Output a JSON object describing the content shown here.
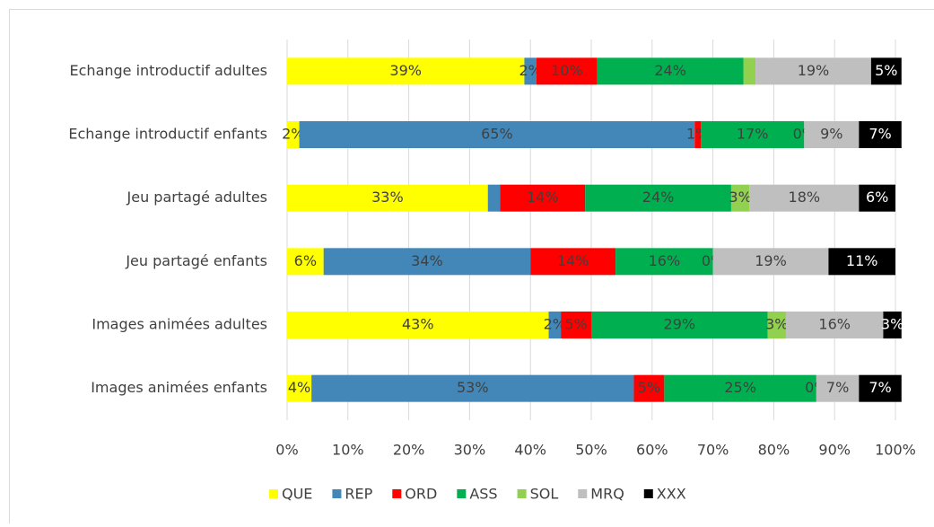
{
  "chart_data": {
    "type": "stacked_barh",
    "categories": [
      "Echange introductif adultes",
      "Echange introductif enfants",
      "Jeu partagé adultes",
      "Jeu partagé enfants",
      "Images animées adultes",
      "Images animées enfants"
    ],
    "series": [
      {
        "name": "QUE",
        "color": "#ffff00",
        "values": [
          39,
          2,
          33,
          6,
          43,
          4
        ],
        "value_labels": [
          "39%",
          "2%",
          "33%",
          "6%",
          "43%",
          "4%"
        ]
      },
      {
        "name": "REP",
        "color": "#4287b8",
        "values": [
          2,
          65,
          2,
          34,
          2,
          53
        ],
        "value_labels": [
          "2%",
          "65%",
          null,
          "34%",
          "2%",
          "53%"
        ]
      },
      {
        "name": "ORD",
        "color": "#ff0000",
        "values": [
          10,
          1,
          14,
          14,
          5,
          5
        ],
        "value_labels": [
          "10%",
          "1%",
          "14%",
          "14%",
          "5%",
          "5%"
        ]
      },
      {
        "name": "ASS",
        "color": "#00b050",
        "values": [
          24,
          17,
          24,
          16,
          29,
          25
        ],
        "value_labels": [
          "24%",
          "17%",
          "24%",
          "16%",
          "29%",
          "25%"
        ]
      },
      {
        "name": "SOL",
        "color": "#92d050",
        "values": [
          2,
          0,
          3,
          0,
          3,
          0
        ],
        "value_labels": [
          null,
          "0%",
          "3%",
          "0%",
          "3%",
          "0%"
        ]
      },
      {
        "name": "MRQ",
        "color": "#bfbfbf",
        "values": [
          19,
          9,
          18,
          19,
          16,
          7
        ],
        "value_labels": [
          "19%",
          "9%",
          "18%",
          "19%",
          "16%",
          "7%"
        ]
      },
      {
        "name": "XXX",
        "color": "#000000",
        "values": [
          5,
          7,
          6,
          11,
          3,
          7
        ],
        "value_labels": [
          "5%",
          "7%",
          "6%",
          "11%",
          "3%",
          "7%"
        ]
      }
    ],
    "xlim": [
      0,
      100
    ],
    "xticks": [
      {
        "value": 0,
        "label": "0%"
      },
      {
        "value": 10,
        "label": "10%"
      },
      {
        "value": 20,
        "label": "20%"
      },
      {
        "value": 30,
        "label": "30%"
      },
      {
        "value": 40,
        "label": "40%"
      },
      {
        "value": 50,
        "label": "50%"
      },
      {
        "value": 60,
        "label": "60%"
      },
      {
        "value": 70,
        "label": "70%"
      },
      {
        "value": 80,
        "label": "80%"
      },
      {
        "value": 90,
        "label": "90%"
      },
      {
        "value": 100,
        "label": "100%"
      }
    ],
    "grid": true,
    "legend": "bottom"
  }
}
